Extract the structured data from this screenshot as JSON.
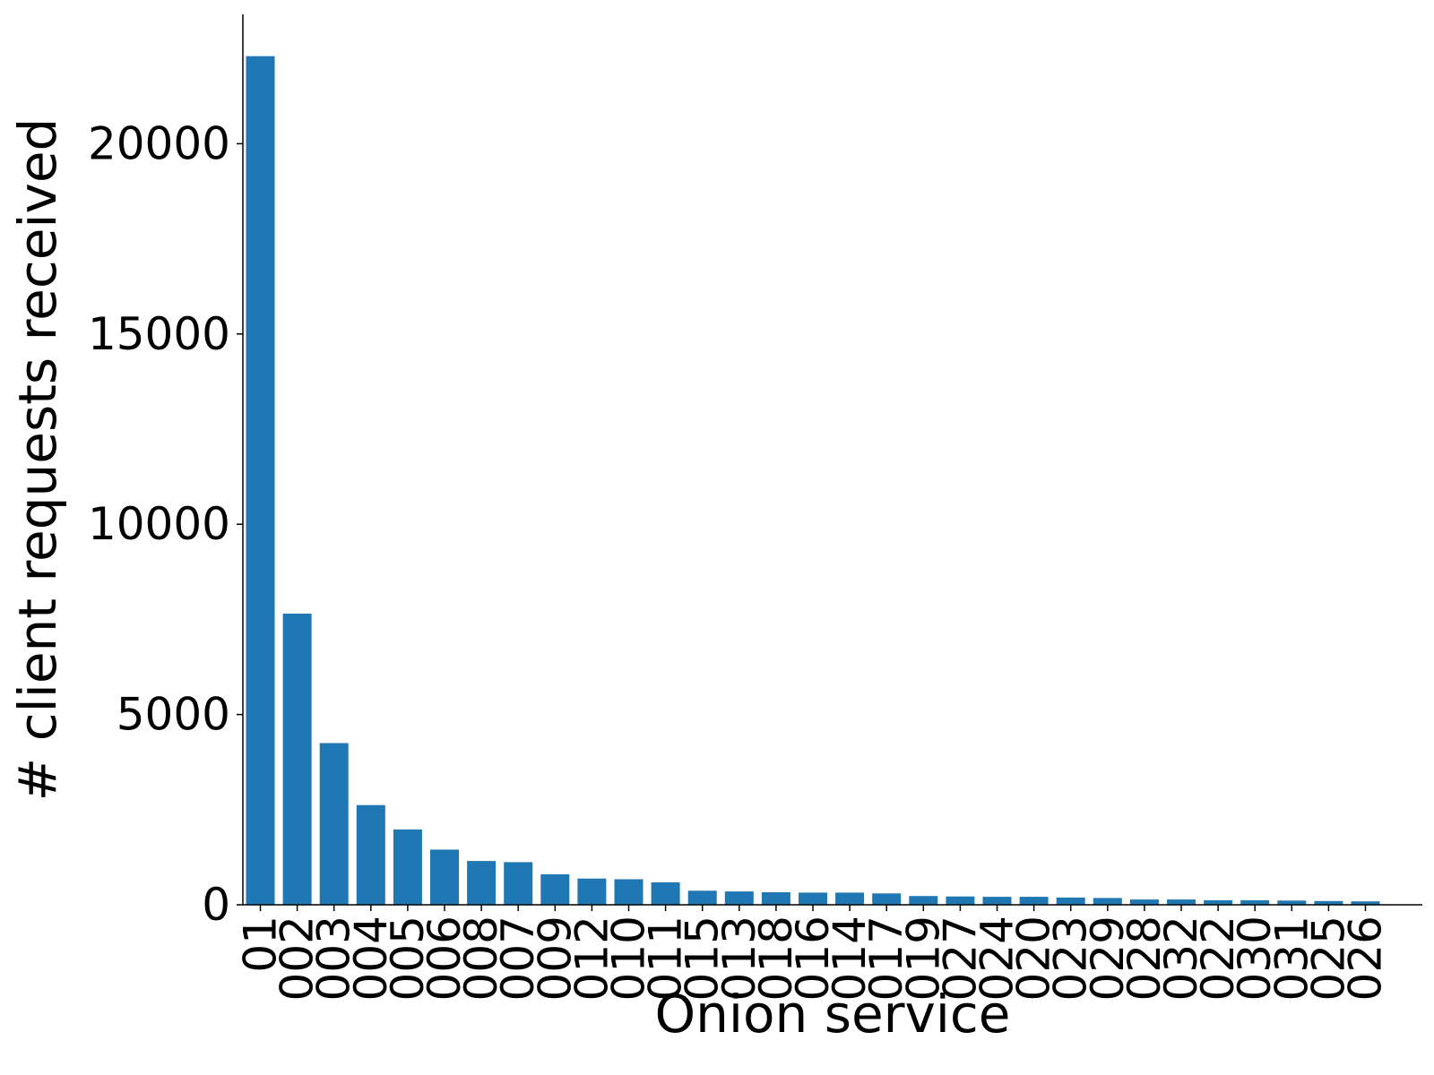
{
  "chart_data": {
    "type": "bar",
    "xlabel": "Onion service",
    "ylabel": "# client requests received",
    "ylim": [
      0,
      23400
    ],
    "yticks": [
      0,
      5000,
      10000,
      15000,
      20000
    ],
    "grid": false,
    "bar_color": "#1f77b4",
    "categories": [
      "01",
      "002",
      "003",
      "004",
      "005",
      "006",
      "008",
      "007",
      "009",
      "012",
      "010",
      "011",
      "015",
      "013",
      "018",
      "016",
      "014",
      "017",
      "019",
      "027",
      "024",
      "020",
      "023",
      "029",
      "028",
      "032",
      "022",
      "030",
      "031",
      "025",
      "026"
    ],
    "values": [
      22300,
      7650,
      4250,
      2620,
      1980,
      1450,
      1150,
      1120,
      800,
      690,
      670,
      590,
      370,
      350,
      330,
      320,
      320,
      300,
      230,
      220,
      210,
      210,
      190,
      180,
      140,
      140,
      120,
      120,
      110,
      100,
      90
    ]
  }
}
